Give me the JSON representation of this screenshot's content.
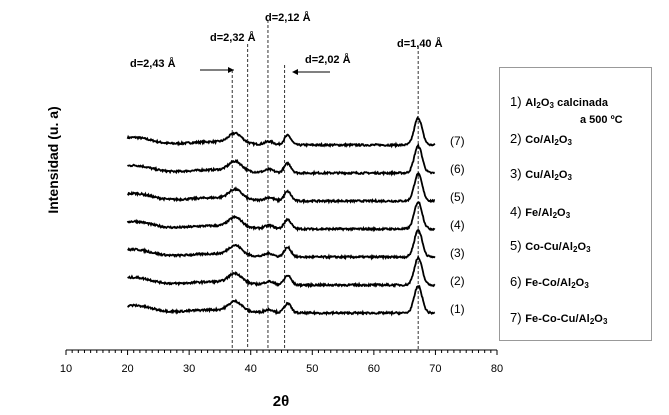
{
  "chart_data": {
    "type": "line",
    "xlabel": "2θ",
    "ylabel": "Intensidad (u. a)",
    "xlim": [
      10,
      80
    ],
    "xticks": [
      10,
      20,
      30,
      40,
      50,
      60,
      70,
      80
    ],
    "x_range_data": [
      20,
      70
    ],
    "grid": false,
    "legend_position": "right",
    "reference_lines": [
      {
        "x": 37.0,
        "label": "d=2,43 Å"
      },
      {
        "x": 39.5,
        "label": "d=2,32 Å"
      },
      {
        "x": 42.8,
        "label": "d=2,12 Å"
      },
      {
        "x": 45.5,
        "label": "d=2,02 Å"
      },
      {
        "x": 67.2,
        "label": "d=1,40 Å"
      }
    ],
    "series": [
      {
        "name": "(7)",
        "offset": 6
      },
      {
        "name": "(6)",
        "offset": 5
      },
      {
        "name": "(5)",
        "offset": 4
      },
      {
        "name": "(4)",
        "offset": 3
      },
      {
        "name": "(3)",
        "offset": 2
      },
      {
        "name": "(2)",
        "offset": 1
      },
      {
        "name": "(1)",
        "offset": 0
      }
    ],
    "peaks": [
      {
        "x": 37.5,
        "height": 0.35,
        "width": 1.5
      },
      {
        "x": 43.0,
        "height": 0.12,
        "width": 1.0
      },
      {
        "x": 46.0,
        "height": 0.35,
        "width": 0.8
      },
      {
        "x": 67.2,
        "height": 1.0,
        "width": 0.9
      }
    ]
  },
  "legend": {
    "items": [
      {
        "idx": "1)",
        "pre": "Al",
        "s1": "2",
        "mid": "O",
        "s2": "3",
        "post": " calcinada",
        "sub_line": "a 500 ºC"
      },
      {
        "idx": "2)",
        "pre": "Co/Al",
        "s1": "2",
        "mid": "O",
        "s2": "3",
        "post": ""
      },
      {
        "idx": "3)",
        "pre": "Cu/Al",
        "s1": "2",
        "mid": "O",
        "s2": "3",
        "post": ""
      },
      {
        "idx": "4)",
        "pre": "Fe/Al",
        "s1": "2",
        "mid": "O",
        "s2": "3",
        "post": ""
      },
      {
        "idx": "5)",
        "pre": "Co-Cu/Al",
        "s1": "2",
        "mid": "O",
        "s2": "3",
        "post": ""
      },
      {
        "idx": "6)",
        "pre": "Fe-Co/Al",
        "s1": "2",
        "mid": "O",
        "s2": "3",
        "post": ""
      },
      {
        "idx": "7)",
        "pre": "Fe-Co-Cu/Al",
        "s1": "2",
        "mid": "O",
        "s2": "3",
        "post": ""
      }
    ]
  }
}
